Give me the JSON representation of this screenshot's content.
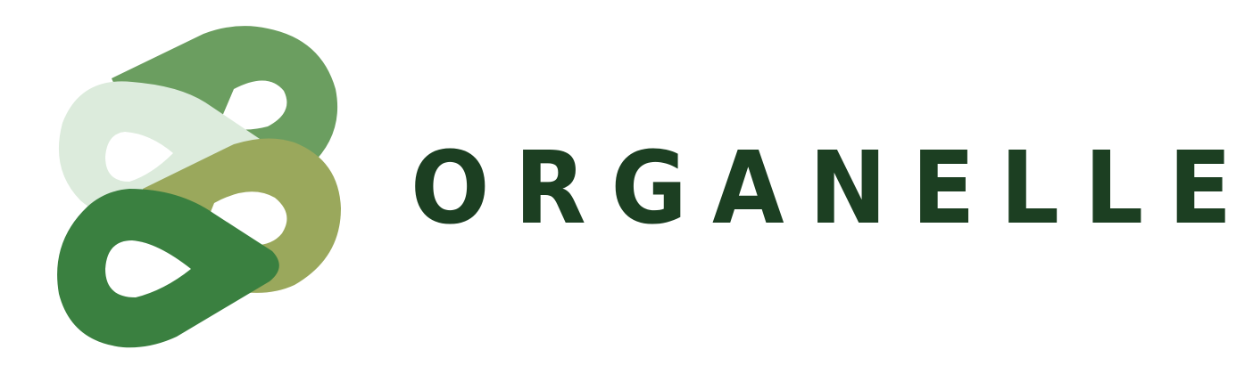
{
  "brand": {
    "wordmark": "ORGANELLE",
    "logo_icon": "interlocking-droplet-links-icon"
  },
  "colors": {
    "background": "#ffffff",
    "wordmark": "#1c3f22",
    "link_top": "#6b9e60",
    "link_pale": "#dcebdc",
    "link_olive": "#9aa85c",
    "link_front": "#3a8040"
  }
}
